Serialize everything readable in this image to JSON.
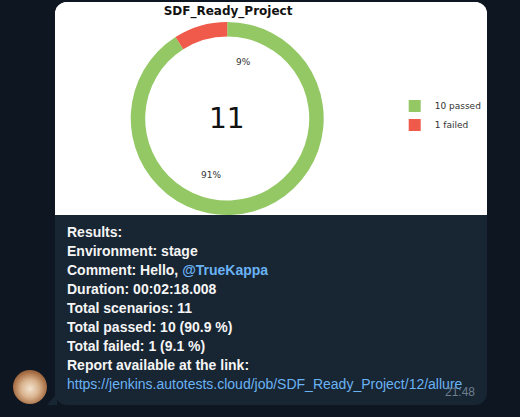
{
  "chart_data": {
    "type": "pie",
    "title": "SDF_Ready_Project",
    "categories": [
      "10 passed",
      "1 failed"
    ],
    "values": [
      91,
      9
    ],
    "value_labels": [
      "91%",
      "9%"
    ],
    "colors": [
      "#93c865",
      "#f05a4a"
    ],
    "center_text": "11",
    "legend": "right"
  },
  "message": {
    "lines": [
      {
        "label": "Results:"
      },
      {
        "label": "Environment:",
        "value": "stage"
      },
      {
        "label": "Comment:",
        "value": "Hello,",
        "mention": "@TrueKappa"
      },
      {
        "label": "Duration:",
        "value": "00:02:18.008"
      },
      {
        "label": "Total scenarios:",
        "value": "11"
      },
      {
        "label": "Total passed:",
        "value": "10 (90.9 %)"
      },
      {
        "label": "Total failed:",
        "value": "1 (9.1 %)"
      },
      {
        "label": "Report available at the link:"
      }
    ],
    "link": "https://jenkins.autotests.cloud/job/SDF_Ready_Project/12/allure",
    "time": "21:48"
  }
}
